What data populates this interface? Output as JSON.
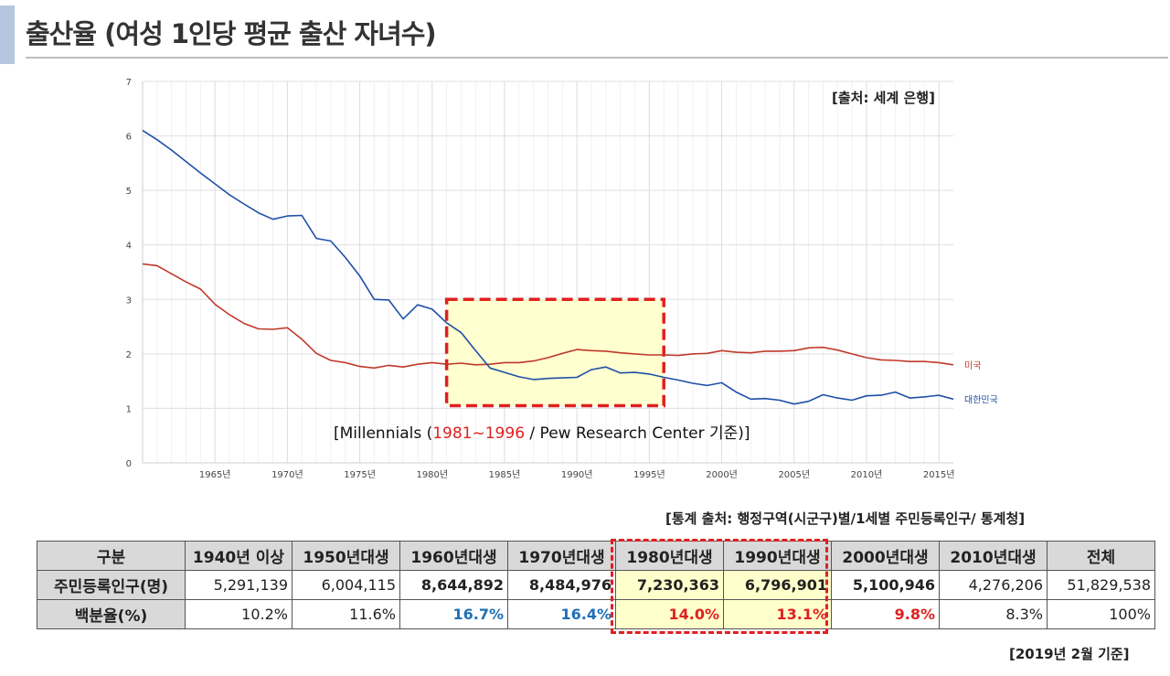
{
  "page_title": "출산율 (여성 1인당 평균 출산 자녀수)",
  "chart_source": "[출처: 세계 은행]",
  "millennials_note": {
    "prefix": "[Millennials (",
    "range": "1981~1996",
    "suffix": " / Pew Research Center 기준)]"
  },
  "table_source": "[통계 출처: 행정구역(시군구)별/1세별  주민등록인구/  통계청]",
  "date_note": "[2019년 2월 기준]",
  "colors": {
    "korea": "#1f4fa8",
    "usa": "#c0392b",
    "highlight": "#ffffcc",
    "dash": "#e02020"
  },
  "chart_data": {
    "type": "line",
    "x_tick_labels": [
      "1965년",
      "1970년",
      "1975년",
      "1980년",
      "1985년",
      "1990년",
      "1995년",
      "2000년",
      "2005년",
      "2010년",
      "2015년"
    ],
    "x_ticks": [
      1965,
      1970,
      1975,
      1980,
      1985,
      1990,
      1995,
      2000,
      2005,
      2010,
      2015
    ],
    "xlim": [
      1960,
      2016
    ],
    "ylim": [
      0,
      7
    ],
    "y_ticks": [
      0,
      1,
      2,
      3,
      4,
      5,
      6,
      7
    ],
    "grid": true,
    "highlight_range": {
      "x": [
        1981,
        1996
      ],
      "y": [
        1.05,
        3.0
      ]
    },
    "series": [
      {
        "name": "미국",
        "color": "#c0392b",
        "x": [
          1960,
          1961,
          1962,
          1963,
          1964,
          1965,
          1966,
          1967,
          1968,
          1969,
          1970,
          1971,
          1972,
          1973,
          1974,
          1975,
          1976,
          1977,
          1978,
          1979,
          1980,
          1981,
          1982,
          1983,
          1984,
          1985,
          1986,
          1987,
          1988,
          1989,
          1990,
          1991,
          1992,
          1993,
          1994,
          1995,
          1996,
          1997,
          1998,
          1999,
          2000,
          2001,
          2002,
          2003,
          2004,
          2005,
          2006,
          2007,
          2008,
          2009,
          2010,
          2011,
          2012,
          2013,
          2014,
          2015,
          2016
        ],
        "y": [
          3.65,
          3.62,
          3.47,
          3.32,
          3.19,
          2.91,
          2.72,
          2.56,
          2.46,
          2.45,
          2.48,
          2.27,
          2.01,
          1.88,
          1.84,
          1.77,
          1.74,
          1.79,
          1.76,
          1.81,
          1.84,
          1.81,
          1.83,
          1.8,
          1.81,
          1.84,
          1.84,
          1.87,
          1.93,
          2.01,
          2.08,
          2.06,
          2.05,
          2.02,
          2.0,
          1.98,
          1.98,
          1.97,
          2.0,
          2.01,
          2.06,
          2.03,
          2.02,
          2.05,
          2.05,
          2.06,
          2.11,
          2.12,
          2.07,
          2.0,
          1.93,
          1.89,
          1.88,
          1.86,
          1.86,
          1.84,
          1.8
        ]
      },
      {
        "name": "대한민국",
        "color": "#1f4fa8",
        "x": [
          1960,
          1961,
          1962,
          1963,
          1964,
          1965,
          1966,
          1967,
          1968,
          1969,
          1970,
          1971,
          1972,
          1973,
          1974,
          1975,
          1976,
          1977,
          1978,
          1979,
          1980,
          1981,
          1982,
          1983,
          1984,
          1985,
          1986,
          1987,
          1988,
          1989,
          1990,
          1991,
          1992,
          1993,
          1994,
          1995,
          1996,
          1997,
          1998,
          1999,
          2000,
          2001,
          2002,
          2003,
          2004,
          2005,
          2006,
          2007,
          2008,
          2009,
          2010,
          2011,
          2012,
          2013,
          2014,
          2015,
          2016
        ],
        "y": [
          6.1,
          5.93,
          5.74,
          5.53,
          5.32,
          5.12,
          4.92,
          4.75,
          4.59,
          4.47,
          4.53,
          4.54,
          4.12,
          4.07,
          3.77,
          3.43,
          3.0,
          2.99,
          2.64,
          2.9,
          2.82,
          2.57,
          2.39,
          2.06,
          1.74,
          1.66,
          1.58,
          1.53,
          1.55,
          1.56,
          1.57,
          1.71,
          1.76,
          1.65,
          1.66,
          1.63,
          1.57,
          1.52,
          1.46,
          1.42,
          1.47,
          1.3,
          1.17,
          1.18,
          1.15,
          1.08,
          1.13,
          1.25,
          1.19,
          1.15,
          1.23,
          1.24,
          1.3,
          1.19,
          1.21,
          1.24,
          1.17
        ]
      }
    ]
  },
  "table": {
    "header": [
      "구분",
      "1940년 이상",
      "1950년대생",
      "1960년대생",
      "1970년대생",
      "1980년대생",
      "1990년대생",
      "2000년대생",
      "2010년대생",
      "전체"
    ],
    "rows": [
      {
        "label": "주민등록인구(명)",
        "cells": [
          "5,291,139",
          "6,004,115",
          "8,644,892",
          "8,484,976",
          "7,230,363",
          "6,796,901",
          "5,100,946",
          "4,276,206",
          "51,829,538"
        ]
      },
      {
        "label": "백분율(%)",
        "cells": [
          "10.2%",
          "11.6%",
          "16.7%",
          "16.4%",
          "14.0%",
          "13.1%",
          "9.8%",
          "8.3%",
          "100%"
        ]
      }
    ]
  }
}
